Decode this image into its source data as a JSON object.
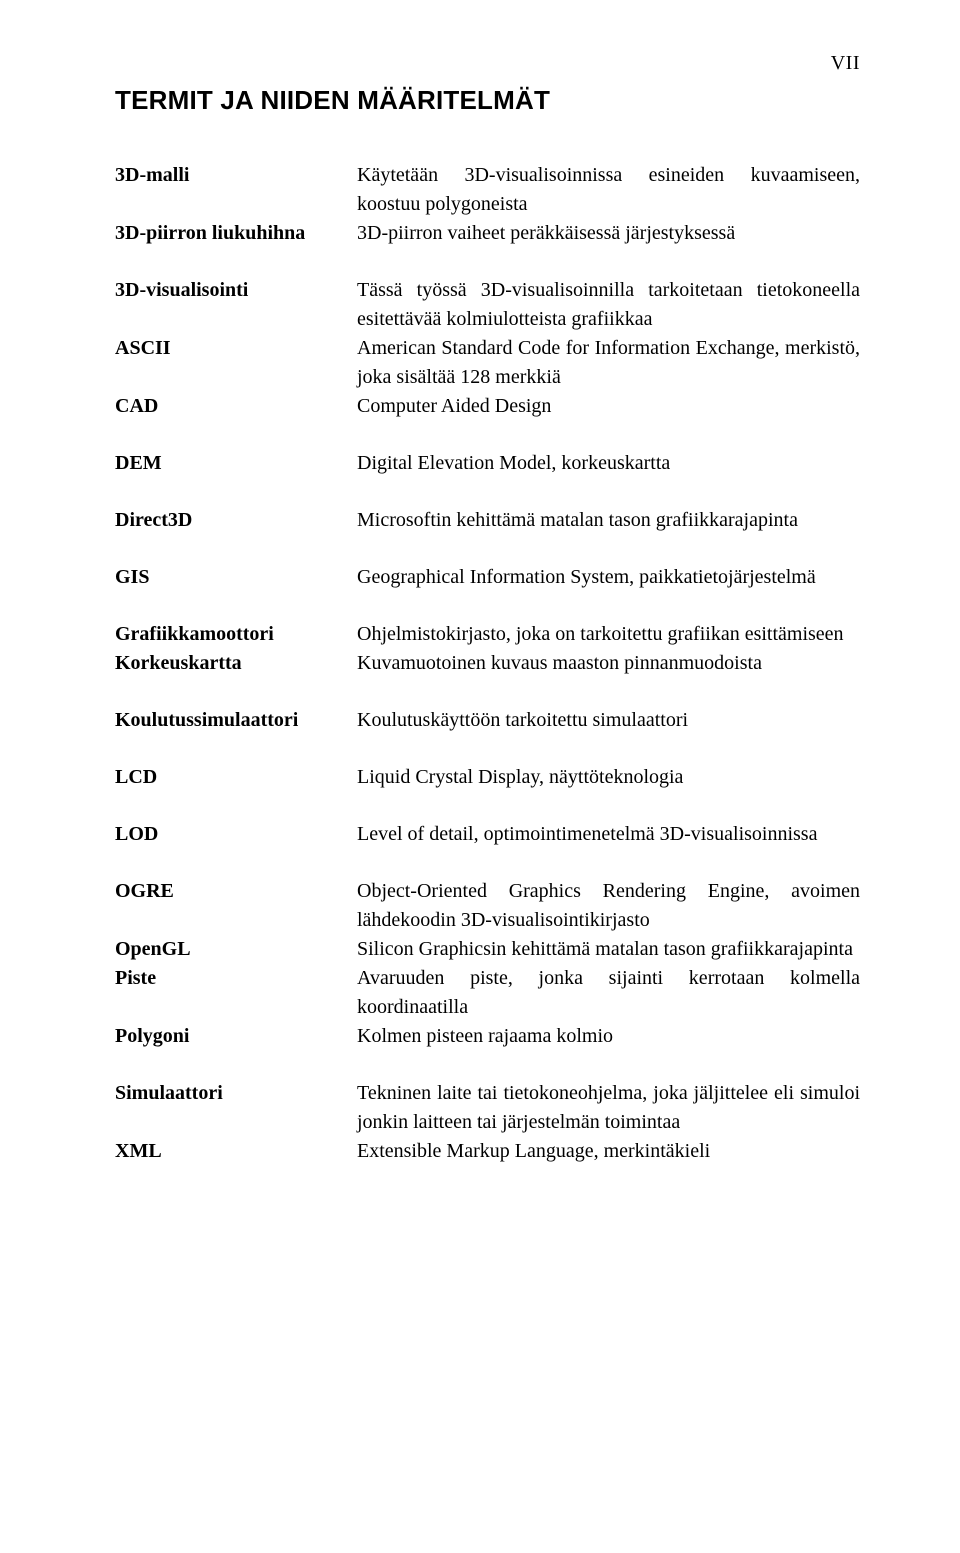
{
  "page_number": "VII",
  "title": "TERMIT JA NIIDEN MÄÄRITELMÄT",
  "groups": [
    [
      {
        "term": "3D-malli",
        "def": "Käytetään 3D-visualisoinnissa esineiden kuvaamiseen, koostuu polygoneista"
      },
      {
        "term": "3D-piirron liukuhihna",
        "def": "3D-piirron vaiheet peräkkäisessä järjestyksessä"
      }
    ],
    [
      {
        "term": "3D-visualisointi",
        "def": "Tässä työssä 3D-visualisoinnilla tarkoitetaan tietokoneella esitettävää kolmiulotteista grafiikkaa"
      },
      {
        "term": "ASCII",
        "def": "American Standard Code for Information Exchange, merkistö, joka sisältää 128 merkkiä"
      },
      {
        "term": "CAD",
        "def": "Computer Aided Design"
      }
    ],
    [
      {
        "term": "DEM",
        "def": "Digital Elevation Model, korkeuskartta"
      }
    ],
    [
      {
        "term": "Direct3D",
        "def": "Microsoftin kehittämä matalan tason grafiikkarajapinta"
      }
    ],
    [
      {
        "term": "GIS",
        "def": "Geographical Information System, paikkatietojärjestelmä"
      }
    ],
    [
      {
        "term": "Grafiikkamoottori",
        "def": "Ohjelmistokirjasto, joka on tarkoitettu grafiikan esittämiseen"
      },
      {
        "term": "Korkeuskartta",
        "def": "Kuvamuotoinen kuvaus maaston pinnanmuodoista"
      }
    ],
    [
      {
        "term": "Koulutussimulaattori",
        "def": "Koulutuskäyttöön tarkoitettu simulaattori"
      }
    ],
    [
      {
        "term": "LCD",
        "def": "Liquid Crystal Display, näyttöteknologia"
      }
    ],
    [
      {
        "term": "LOD",
        "def": "Level of detail, optimointimenetelmä 3D-visualisoinnissa"
      }
    ],
    [
      {
        "term": "OGRE",
        "def": "Object-Oriented Graphics Rendering Engine, avoimen lähdekoodin 3D-visualisointikirjasto"
      },
      {
        "term": "OpenGL",
        "def": "Silicon Graphicsin kehittämä matalan tason grafiikkarajapinta"
      },
      {
        "term": "Piste",
        "def": "Avaruuden piste, jonka sijainti kerrotaan kolmella koordinaatilla"
      },
      {
        "term": "Polygoni",
        "def": "Kolmen pisteen rajaama kolmio"
      }
    ],
    [
      {
        "term": "Simulaattori",
        "def": "Tekninen laite tai tietokoneohjelma, joka jäljittelee eli simuloi jonkin laitteen tai järjestelmän toimintaa"
      },
      {
        "term": "XML",
        "def": "Extensible Markup Language, merkintäkieli"
      }
    ]
  ]
}
